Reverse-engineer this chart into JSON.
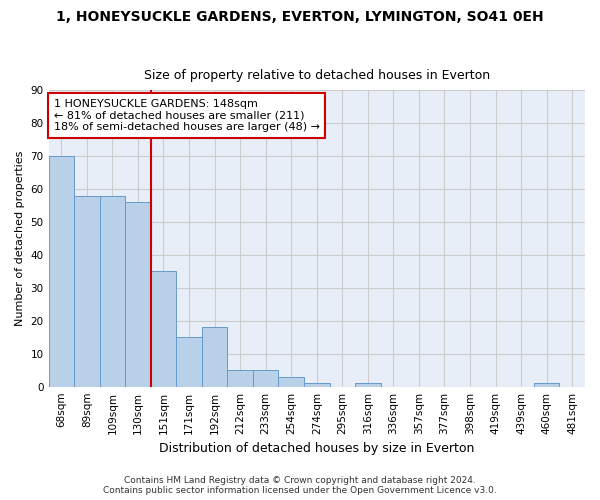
{
  "title_line1": "1, HONEYSUCKLE GARDENS, EVERTON, LYMINGTON, SO41 0EH",
  "title_line2": "Size of property relative to detached houses in Everton",
  "xlabel": "Distribution of detached houses by size in Everton",
  "ylabel": "Number of detached properties",
  "categories": [
    "68sqm",
    "89sqm",
    "109sqm",
    "130sqm",
    "151sqm",
    "171sqm",
    "192sqm",
    "212sqm",
    "233sqm",
    "254sqm",
    "274sqm",
    "295sqm",
    "316sqm",
    "336sqm",
    "357sqm",
    "377sqm",
    "398sqm",
    "419sqm",
    "439sqm",
    "460sqm",
    "481sqm"
  ],
  "values": [
    70,
    58,
    58,
    56,
    35,
    15,
    18,
    5,
    5,
    3,
    1,
    0,
    1,
    0,
    0,
    0,
    0,
    0,
    0,
    1,
    0
  ],
  "bar_color": "#b8d0e8",
  "bar_edge_color": "#6699cc",
  "property_line_label": "1 HONEYSUCKLE GARDENS: 148sqm",
  "smaller_label": "← 81% of detached houses are smaller (211)",
  "larger_label": "18% of semi-detached houses are larger (48) →",
  "annotation_box_color": "#ffffff",
  "annotation_box_edge_color": "#cc0000",
  "vline_color": "#cc0000",
  "vline_x": 3.5,
  "ylim": [
    0,
    90
  ],
  "yticks": [
    0,
    10,
    20,
    30,
    40,
    50,
    60,
    70,
    80,
    90
  ],
  "grid_color": "#cccccc",
  "bg_color": "#e8eef8",
  "footnote": "Contains HM Land Registry data © Crown copyright and database right 2024.\nContains public sector information licensed under the Open Government Licence v3.0.",
  "title_fontsize": 10,
  "subtitle_fontsize": 9,
  "xlabel_fontsize": 9,
  "ylabel_fontsize": 8,
  "tick_fontsize": 7.5,
  "annot_fontsize": 8,
  "footnote_fontsize": 6.5
}
